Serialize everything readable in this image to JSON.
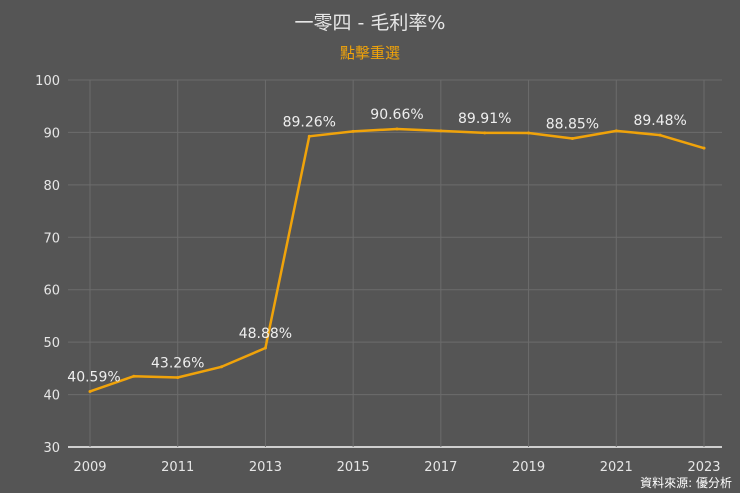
{
  "chart_data": {
    "type": "line",
    "title": "一零四 - 毛利率%",
    "subtitle": "點擊重選",
    "x": [
      2009,
      2010,
      2011,
      2012,
      2013,
      2014,
      2015,
      2016,
      2017,
      2018,
      2019,
      2020,
      2021,
      2022,
      2023
    ],
    "series": [
      {
        "values": [
          40.59,
          43.5,
          43.26,
          45.3,
          48.88,
          89.26,
          90.2,
          90.66,
          90.3,
          89.91,
          89.9,
          88.85,
          90.3,
          89.48,
          87.0
        ]
      }
    ],
    "data_labels": [
      "40.59%",
      null,
      "43.26%",
      null,
      "48.88%",
      "89.26%",
      null,
      "90.66%",
      null,
      "89.91%",
      null,
      "88.85%",
      null,
      "89.48%",
      null
    ],
    "x_ticks": [
      "2009",
      "2011",
      "2013",
      "2015",
      "2017",
      "2019",
      "2021",
      "2023"
    ],
    "y_ticks": [
      "30",
      "40",
      "50",
      "60",
      "70",
      "80",
      "90",
      "100"
    ],
    "xlim": [
      2009,
      2023
    ],
    "ylim": [
      30,
      100
    ],
    "grid": true,
    "line_color": "#f0a30a",
    "background_color": "#555555"
  },
  "credit": "資料來源: 優分析"
}
